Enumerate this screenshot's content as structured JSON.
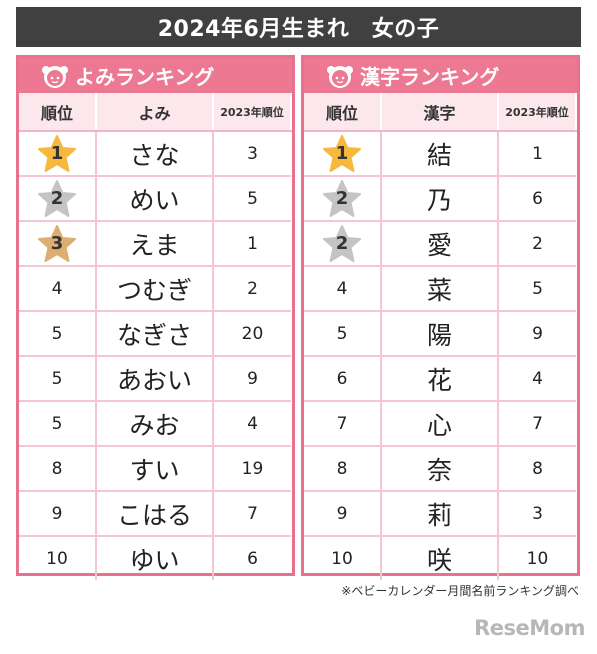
{
  "title": "2024年6月生まれ　女の子",
  "left_panel": {
    "header": "よみランキング",
    "columns": [
      "順位",
      "よみ",
      "2023年順位"
    ],
    "rows": [
      {
        "rank": "1",
        "name": "さな",
        "prev": "3"
      },
      {
        "rank": "2",
        "name": "めい",
        "prev": "5"
      },
      {
        "rank": "3",
        "name": "えま",
        "prev": "1"
      },
      {
        "rank": "4",
        "name": "つむぎ",
        "prev": "2"
      },
      {
        "rank": "5",
        "name": "なぎさ",
        "prev": "20"
      },
      {
        "rank": "5",
        "name": "あおい",
        "prev": "9"
      },
      {
        "rank": "5",
        "name": "みお",
        "prev": "4"
      },
      {
        "rank": "8",
        "name": "すい",
        "prev": "19"
      },
      {
        "rank": "9",
        "name": "こはる",
        "prev": "7"
      },
      {
        "rank": "10",
        "name": "ゆい",
        "prev": "6"
      }
    ]
  },
  "right_panel": {
    "header": "漢字ランキング",
    "columns": [
      "順位",
      "漢字",
      "2023年順位"
    ],
    "rows": [
      {
        "rank": "1",
        "name": "結",
        "prev": "1"
      },
      {
        "rank": "2",
        "name": "乃",
        "prev": "6"
      },
      {
        "rank": "2",
        "name": "愛",
        "prev": "2"
      },
      {
        "rank": "4",
        "name": "菜",
        "prev": "5"
      },
      {
        "rank": "5",
        "name": "陽",
        "prev": "9"
      },
      {
        "rank": "6",
        "name": "花",
        "prev": "4"
      },
      {
        "rank": "7",
        "name": "心",
        "prev": "7"
      },
      {
        "rank": "8",
        "name": "奈",
        "prev": "8"
      },
      {
        "rank": "9",
        "name": "莉",
        "prev": "3"
      },
      {
        "rank": "10",
        "name": "咲",
        "prev": "10"
      }
    ]
  },
  "star_colors": {
    "gold": "#f6b93b",
    "silver": "#c4c4c4",
    "bronze": "#dcae72"
  },
  "accent_color": "#ec7892",
  "footnote": "※ベビーカレンダー月間名前ランキング調べ",
  "logo": "ReseMom"
}
